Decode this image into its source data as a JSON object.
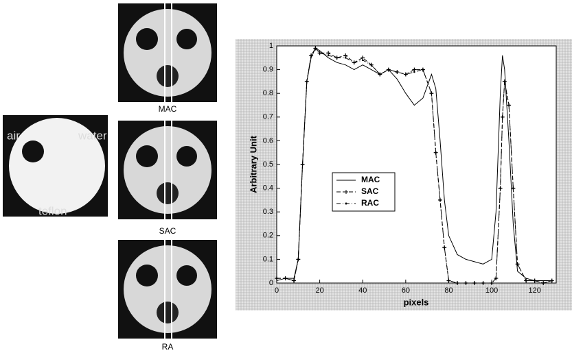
{
  "phantom": {
    "labels": [
      "air",
      "water",
      "teflon"
    ]
  },
  "images": [
    "MAC",
    "SAC",
    "RA"
  ],
  "chart_data": {
    "type": "line",
    "xlabel": "pixels",
    "ylabel": "Arbitrary Unit",
    "x": [
      0,
      4,
      8,
      10,
      12,
      14,
      16,
      18,
      20,
      24,
      28,
      32,
      36,
      40,
      44,
      48,
      52,
      56,
      60,
      64,
      68,
      72,
      74,
      76,
      78,
      80,
      84,
      88,
      92,
      96,
      100,
      102,
      104,
      105,
      106,
      108,
      110,
      112,
      116,
      120,
      124,
      128
    ],
    "series": [
      {
        "name": "MAC",
        "color": "#000000",
        "values": [
          0.01,
          0.02,
          0.02,
          0.1,
          0.5,
          0.85,
          0.95,
          0.99,
          0.98,
          0.95,
          0.93,
          0.92,
          0.9,
          0.92,
          0.9,
          0.88,
          0.9,
          0.86,
          0.8,
          0.75,
          0.78,
          0.88,
          0.82,
          0.6,
          0.35,
          0.2,
          0.12,
          0.1,
          0.09,
          0.08,
          0.1,
          0.3,
          0.8,
          0.96,
          0.9,
          0.6,
          0.25,
          0.05,
          0.02,
          0.01,
          0.01,
          0.01
        ]
      },
      {
        "name": "SAC",
        "color": "#000000",
        "values": [
          0.02,
          0.02,
          0.01,
          0.1,
          0.5,
          0.85,
          0.96,
          0.99,
          0.97,
          0.97,
          0.95,
          0.96,
          0.93,
          0.95,
          0.92,
          0.88,
          0.9,
          0.89,
          0.88,
          0.9,
          0.9,
          0.8,
          0.55,
          0.35,
          0.15,
          0.01,
          0,
          0,
          0,
          0,
          0,
          0.02,
          0.4,
          0.7,
          0.85,
          0.75,
          0.4,
          0.08,
          0.01,
          0.01,
          0,
          0.01
        ]
      },
      {
        "name": "RAC",
        "color": "#000000",
        "values": [
          0.02,
          0.02,
          0.01,
          0.1,
          0.5,
          0.85,
          0.96,
          0.99,
          0.97,
          0.96,
          0.95,
          0.95,
          0.93,
          0.94,
          0.92,
          0.88,
          0.9,
          0.89,
          0.88,
          0.89,
          0.9,
          0.8,
          0.55,
          0.35,
          0.15,
          0.01,
          0,
          0,
          0,
          0,
          0,
          0.02,
          0.4,
          0.7,
          0.85,
          0.75,
          0.4,
          0.08,
          0.01,
          0.01,
          0,
          0.01
        ]
      }
    ],
    "xlim": [
      0,
      130
    ],
    "ylim": [
      0,
      1
    ],
    "xticks": [
      0,
      20,
      40,
      60,
      80,
      100,
      120
    ],
    "yticks": [
      0,
      0.1,
      0.2,
      0.3,
      0.4,
      0.5,
      0.6,
      0.7,
      0.8,
      0.9,
      1
    ],
    "legend": "center-left"
  }
}
